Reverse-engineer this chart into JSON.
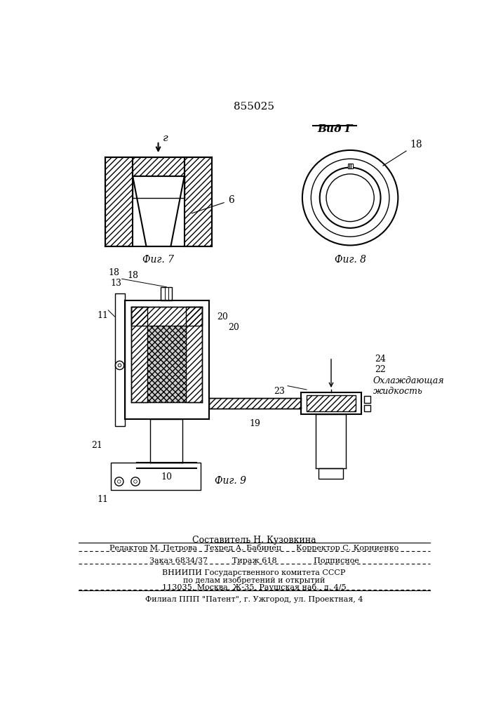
{
  "title": "855025",
  "bg_color": "#ffffff",
  "line_color": "#000000",
  "fig7_label": "Фиг. 7",
  "fig8_label": "Фиг. 8",
  "fig9_label": "Фиг. 9",
  "vid_label": "Вид Г",
  "arrow_label": "г",
  "label_6": "6",
  "label_10": "10",
  "label_11": "11",
  "label_13": "13",
  "label_18": "18",
  "label_19": "19",
  "label_20a": "20",
  "label_20b": "20",
  "label_21": "21",
  "label_22": "22",
  "label_23": "23",
  "label_24": "24",
  "cooling_text": "Охлаждающая\nжидкость",
  "footer_line1": "Составитель Н. Кузовкина",
  "footer_line2": "Редактор М. Петрова   Техред А. Бабинец      Корректор С. Корниенко",
  "footer_line3": "Заказ 6834/37          Тираж 618               Подписное",
  "footer_line4": "ВНИИПИ Государственного комитета СССР",
  "footer_line5": "по делам изобретений и открытий",
  "footer_line6": "113035, Москва, Ж-35, Раушская наб., д. 4/5",
  "footer_line7": "Филиал ППП \"Патент\", г. Ужгород, ул. Проектная, 4"
}
